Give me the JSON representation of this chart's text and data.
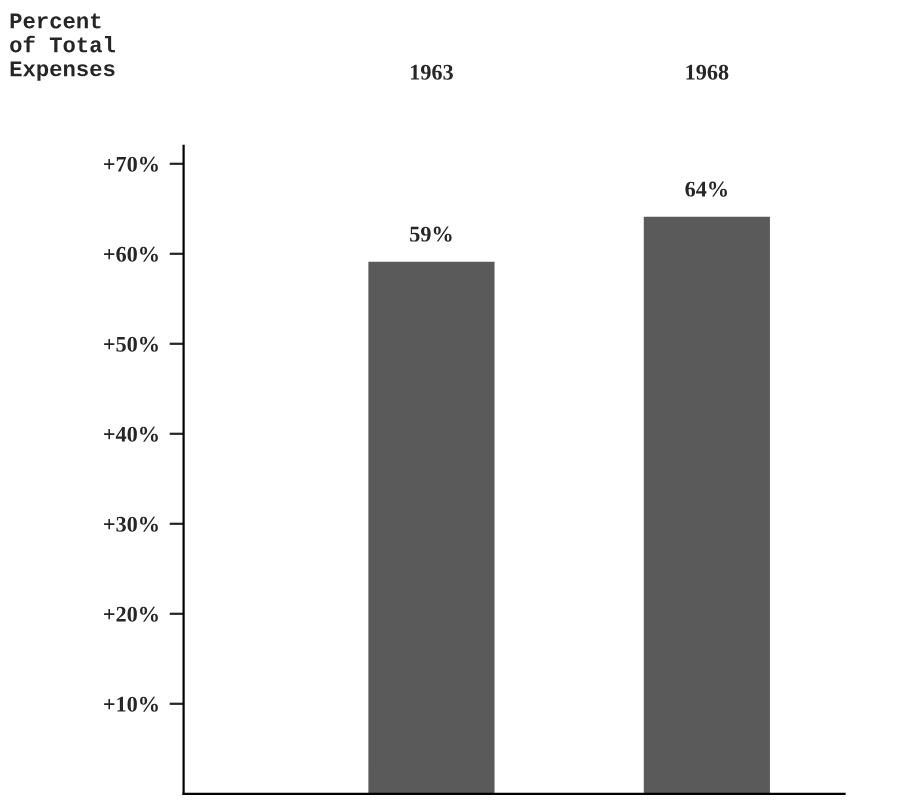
{
  "chart_data": {
    "type": "bar",
    "ylabel": "Percent\nof Total\nExpenses",
    "categories": [
      "1963",
      "1968"
    ],
    "values": [
      59,
      64
    ],
    "value_labels": [
      "59%",
      "64%"
    ],
    "color": "#5a5a5a",
    "ylim": [
      0,
      72
    ],
    "yticks": [
      {
        "value": 10,
        "label": "+10%"
      },
      {
        "value": 20,
        "label": "+20%"
      },
      {
        "value": 30,
        "label": "+30%"
      },
      {
        "value": 40,
        "label": "+40%"
      },
      {
        "value": 50,
        "label": "+50%"
      },
      {
        "value": 60,
        "label": "+60%"
      },
      {
        "value": 70,
        "label": "+70%"
      }
    ],
    "grid": false
  }
}
